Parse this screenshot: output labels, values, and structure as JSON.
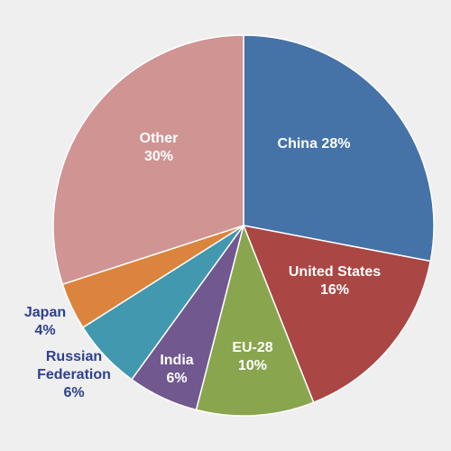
{
  "chart_data": {
    "type": "pie",
    "start": "12 o'clock",
    "direction": "clockwise",
    "slices": [
      {
        "name": "China",
        "value": 28,
        "label": [
          "China 28%"
        ],
        "color": "#4572a7",
        "label_color": "#ffffff",
        "label_inside": true
      },
      {
        "name": "United States",
        "value": 16,
        "label": [
          "United States",
          "16%"
        ],
        "color": "#aa4643",
        "label_color": "#ffffff",
        "label_inside": true
      },
      {
        "name": "EU-28",
        "value": 10,
        "label": [
          "EU-28",
          "10%"
        ],
        "color": "#89a54e",
        "label_color": "#ffffff",
        "label_inside": true
      },
      {
        "name": "India",
        "value": 6,
        "label": [
          "India",
          "6%"
        ],
        "color": "#71588f",
        "label_color": "#ffffff",
        "label_inside": true
      },
      {
        "name": "Russian Federation",
        "value": 6,
        "label": [
          "Russian",
          "Federation",
          "6%"
        ],
        "color": "#4198af",
        "label_color": "#2e3f8f",
        "label_inside": false
      },
      {
        "name": "Japan",
        "value": 4,
        "label": [
          "Japan",
          "4%"
        ],
        "color": "#db843d",
        "label_color": "#2e3f8f",
        "label_inside": false
      },
      {
        "name": "Other",
        "value": 30,
        "label": [
          "Other",
          "30%"
        ],
        "color": "#d09493",
        "label_color": "#ffffff",
        "label_inside": true
      }
    ]
  }
}
